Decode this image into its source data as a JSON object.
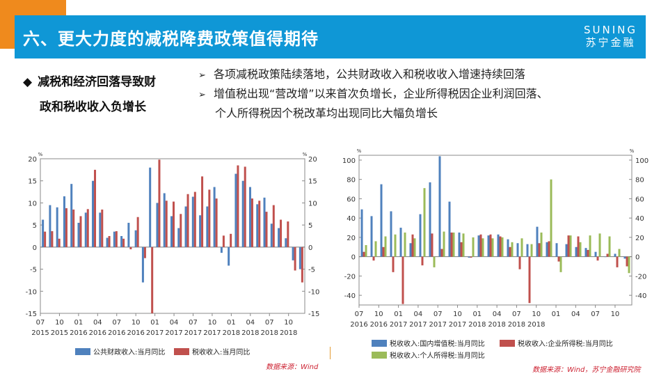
{
  "header": {
    "title": "六、更大力度的减税降费政策值得期待",
    "logo_en": "SUNING",
    "logo_cn": "苏宁金融"
  },
  "left_heading": {
    "bullet": "◆",
    "line1": "减税和经济回落导致财",
    "line2": "政和税收收入负增长"
  },
  "bullets": {
    "arrow": "➢",
    "line1": "各项减税政策陆续落地，公共财政收入和税收收入增速持续回落",
    "line2": "增值税出现“营改增”以来首次负增长，企业所得税因企业利润回落、",
    "line3": "个人所得税因个税改革均出现同比大幅负增长"
  },
  "colors": {
    "header_blue": "#0f97d6",
    "orange": "#ef8a1d",
    "series_blue": "#4f81bd",
    "series_red": "#c0504d",
    "series_green": "#9bbb59",
    "source_red": "#cc1f2f"
  },
  "source_left": "数据来源：Wind",
  "source_right": "数据来源：Wind，苏宁金融研究院",
  "chart_data": [
    {
      "type": "bar",
      "unit_label": "%",
      "ylim": [
        -15,
        20
      ],
      "yticks": [
        -15,
        -10,
        -5,
        0,
        5,
        10,
        15,
        20
      ],
      "x_tick_labels": [
        "07",
        "10",
        "01",
        "04",
        "07",
        "10",
        "01",
        "04",
        "07",
        "10",
        "01",
        "04",
        "07",
        "10"
      ],
      "x_year_labels": [
        "2015",
        "2015",
        "2016",
        "2016",
        "2016",
        "2016",
        "2017",
        "2017",
        "2017",
        "2017",
        "2018",
        "2018",
        "2018",
        "2018"
      ],
      "series": [
        {
          "name": "公共财政收入:当月同比",
          "values": [
            6.2,
            9.5,
            9.0,
            11.5,
            14.3,
            5.5,
            7.8,
            15.0,
            7.8,
            2.1,
            3.5,
            2.5,
            5.5,
            3.8,
            -8.0,
            18.0,
            10.0,
            12.2,
            7.0,
            4.3,
            9.2,
            11.4,
            7.2,
            9.2,
            13.6,
            -1.3,
            -4.2,
            16.6,
            15.0,
            13.6,
            9.7,
            11.2,
            5.3,
            4.3,
            2.0,
            -3.0,
            -5.0
          ]
        },
        {
          "name": "税收收入:当月同比",
          "values": [
            3.5,
            3.6,
            1.9,
            8.8,
            8.5,
            7.0,
            8.6,
            17.5,
            8.5,
            2.5,
            3.6,
            1.9,
            -0.5,
            6.8,
            -2.5,
            -15.0,
            19.8,
            10.5,
            10.3,
            7.5,
            12.0,
            12.5,
            16.0,
            13.0,
            11.0,
            2.6,
            3.0,
            18.5,
            18.2,
            11.0,
            10.5,
            8.0,
            9.5,
            6.2,
            5.8,
            -5.3,
            -8.0
          ]
        }
      ]
    },
    {
      "type": "bar",
      "unit_label": "%",
      "ylim": [
        -50,
        105
      ],
      "yticks": [
        -40,
        -20,
        0,
        20,
        40,
        60,
        80,
        100
      ],
      "x_tick_labels": [
        "07",
        "10",
        "01",
        "04",
        "07",
        "10",
        "01",
        "04",
        "07",
        "10",
        "01",
        "04",
        "07",
        "10"
      ],
      "x_year_labels": [
        "2016",
        "2016",
        "2017",
        "2017",
        "2017",
        "2017",
        "2018",
        "2018",
        "2018",
        "2018",
        "",
        "",
        "",
        ""
      ],
      "first_year_label": "2016",
      "series": [
        {
          "name": "税收收入:国内增值税:当月同比",
          "values": [
            49,
            42,
            75,
            47,
            30,
            14,
            44,
            77,
            104,
            57,
            25,
            -1,
            22,
            22,
            23,
            18,
            14,
            13,
            31,
            15,
            14,
            13,
            10,
            9,
            5,
            0,
            3,
            -2
          ]
        },
        {
          "name": "税收收入:企业所得税:当月同比",
          "values": [
            5,
            -4,
            10,
            -16,
            -49,
            23,
            -9,
            24,
            8,
            25,
            15,
            -1,
            23,
            23,
            21,
            10,
            -13,
            -48,
            14,
            16,
            -5,
            22,
            21,
            7,
            -4,
            3,
            -11,
            -10
          ]
        },
        {
          "name": "税收收入:个人所得税:当月同比",
          "values": [
            12,
            16,
            21,
            23,
            25,
            19,
            71,
            -11,
            26,
            25,
            24,
            20,
            19,
            19,
            20,
            15,
            19,
            13,
            25,
            80,
            -16,
            22,
            15,
            22,
            24,
            21,
            8,
            -17
          ]
        }
      ]
    }
  ]
}
